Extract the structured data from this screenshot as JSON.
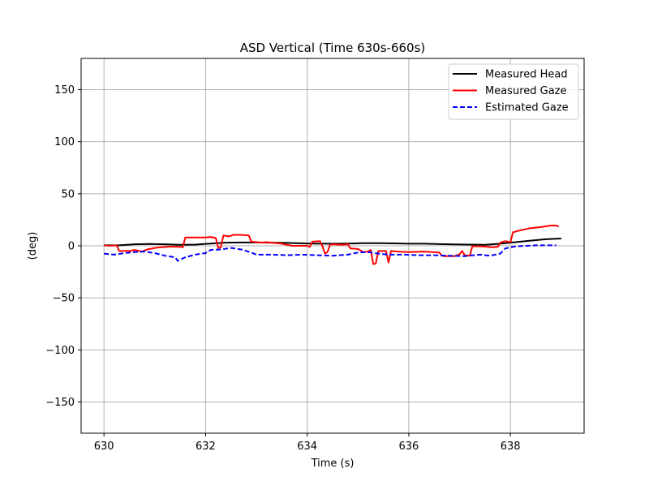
{
  "chart_data": {
    "type": "line",
    "title": "ASD Vertical (Time 630s-660s)",
    "xlabel": "Time (s)",
    "ylabel": "(deg)",
    "xlim": [
      629.55,
      639.45
    ],
    "ylim": [
      -180,
      180
    ],
    "xticks": [
      630,
      632,
      634,
      636,
      638
    ],
    "xtick_labels": [
      "630",
      "632",
      "634",
      "636",
      "638"
    ],
    "yticks": [
      150,
      100,
      50,
      0,
      -50,
      -100,
      -150
    ],
    "ytick_labels": [
      "150",
      "100",
      "50",
      "0",
      "−50",
      "−100",
      "−150"
    ],
    "grid": true,
    "legend_position": "top-right",
    "series": [
      {
        "name": "Measured Head",
        "color": "#000000",
        "dash": "solid",
        "points": [
          [
            630.0,
            0.5
          ],
          [
            630.3,
            0.5
          ],
          [
            630.6,
            1.5
          ],
          [
            630.9,
            1.8
          ],
          [
            631.2,
            1.5
          ],
          [
            631.5,
            1.0
          ],
          [
            631.8,
            1.2
          ],
          [
            632.1,
            2.2
          ],
          [
            632.4,
            3.0
          ],
          [
            632.7,
            3.2
          ],
          [
            633.0,
            3.2
          ],
          [
            633.3,
            3.0
          ],
          [
            633.6,
            2.8
          ],
          [
            633.9,
            2.3
          ],
          [
            634.2,
            2.0
          ],
          [
            634.5,
            2.0
          ],
          [
            634.8,
            2.2
          ],
          [
            635.1,
            2.6
          ],
          [
            635.4,
            2.5
          ],
          [
            635.7,
            2.3
          ],
          [
            636.0,
            2.0
          ],
          [
            636.3,
            2.0
          ],
          [
            636.6,
            1.6
          ],
          [
            636.9,
            1.4
          ],
          [
            637.2,
            1.2
          ],
          [
            637.5,
            1.0
          ],
          [
            637.8,
            2.0
          ],
          [
            638.1,
            3.5
          ],
          [
            638.4,
            5.0
          ],
          [
            638.7,
            6.3
          ],
          [
            639.0,
            7.0
          ]
        ]
      },
      {
        "name": "Measured Gaze",
        "color": "#ff0000",
        "dash": "solid",
        "points": [
          [
            630.0,
            0.5
          ],
          [
            630.1,
            0.0
          ],
          [
            630.25,
            0.5
          ],
          [
            630.3,
            -5.0
          ],
          [
            630.5,
            -5.0
          ],
          [
            630.6,
            -4.0
          ],
          [
            630.75,
            -5.5
          ],
          [
            630.85,
            -3.5
          ],
          [
            631.0,
            -2.0
          ],
          [
            631.1,
            -1.5
          ],
          [
            631.3,
            -0.8
          ],
          [
            631.5,
            -1.0
          ],
          [
            631.55,
            -1.5
          ],
          [
            631.6,
            8.0
          ],
          [
            632.0,
            8.0
          ],
          [
            632.1,
            8.5
          ],
          [
            632.2,
            7.5
          ],
          [
            632.25,
            -2.0
          ],
          [
            632.3,
            -1.5
          ],
          [
            632.35,
            10.0
          ],
          [
            632.45,
            9.0
          ],
          [
            632.55,
            10.5
          ],
          [
            632.7,
            10.5
          ],
          [
            632.85,
            10.0
          ],
          [
            632.9,
            4.0
          ],
          [
            633.1,
            3.0
          ],
          [
            633.2,
            3.5
          ],
          [
            633.5,
            2.0
          ],
          [
            633.7,
            0.0
          ],
          [
            634.0,
            0.0
          ],
          [
            634.05,
            -1.0
          ],
          [
            634.1,
            4.0
          ],
          [
            634.25,
            4.5
          ],
          [
            634.3,
            -0.5
          ],
          [
            634.35,
            -7.5
          ],
          [
            634.4,
            -6.0
          ],
          [
            634.45,
            1.0
          ],
          [
            634.5,
            1.5
          ],
          [
            634.7,
            1.0
          ],
          [
            634.8,
            1.5
          ],
          [
            634.85,
            -2.5
          ],
          [
            635.0,
            -3.0
          ],
          [
            635.1,
            -6.0
          ],
          [
            635.2,
            -5.5
          ],
          [
            635.25,
            -4.0
          ],
          [
            635.3,
            -17.5
          ],
          [
            635.35,
            -17.0
          ],
          [
            635.4,
            -5.0
          ],
          [
            635.55,
            -5.0
          ],
          [
            635.6,
            -16.0
          ],
          [
            635.65,
            -5.0
          ],
          [
            635.8,
            -5.5
          ],
          [
            636.0,
            -6.0
          ],
          [
            636.3,
            -5.5
          ],
          [
            636.6,
            -6.5
          ],
          [
            636.65,
            -9.5
          ],
          [
            636.7,
            -10.0
          ],
          [
            636.9,
            -10.0
          ],
          [
            637.0,
            -8.0
          ],
          [
            637.05,
            -5.0
          ],
          [
            637.1,
            -9.0
          ],
          [
            637.2,
            -9.5
          ],
          [
            637.25,
            -0.5
          ],
          [
            637.4,
            -0.5
          ],
          [
            637.55,
            -1.0
          ],
          [
            637.65,
            -1.5
          ],
          [
            637.75,
            -1.0
          ],
          [
            637.8,
            3.0
          ],
          [
            637.9,
            4.5
          ],
          [
            638.0,
            3.5
          ],
          [
            638.05,
            13.0
          ],
          [
            638.2,
            15.0
          ],
          [
            638.4,
            17.0
          ],
          [
            638.6,
            18.0
          ],
          [
            638.8,
            19.5
          ],
          [
            638.9,
            19.5
          ],
          [
            638.95,
            18.5
          ]
        ]
      },
      {
        "name": "Estimated Gaze",
        "color": "#0000ff",
        "dash": "dashed",
        "points": [
          [
            630.0,
            -7.5
          ],
          [
            630.2,
            -8.5
          ],
          [
            630.4,
            -7.0
          ],
          [
            630.6,
            -6.0
          ],
          [
            630.8,
            -5.5
          ],
          [
            631.0,
            -7.0
          ],
          [
            631.2,
            -9.5
          ],
          [
            631.4,
            -11.0
          ],
          [
            631.45,
            -14.5
          ],
          [
            631.6,
            -11.0
          ],
          [
            631.8,
            -8.5
          ],
          [
            632.0,
            -7.0
          ],
          [
            632.1,
            -4.0
          ],
          [
            632.3,
            -3.5
          ],
          [
            632.5,
            -2.0
          ],
          [
            632.7,
            -3.5
          ],
          [
            632.9,
            -6.5
          ],
          [
            633.0,
            -8.5
          ],
          [
            633.3,
            -8.5
          ],
          [
            633.6,
            -9.0
          ],
          [
            633.9,
            -8.5
          ],
          [
            634.2,
            -9.0
          ],
          [
            634.5,
            -9.5
          ],
          [
            634.8,
            -8.5
          ],
          [
            635.0,
            -6.5
          ],
          [
            635.2,
            -6.0
          ],
          [
            635.4,
            -7.5
          ],
          [
            635.6,
            -8.5
          ],
          [
            635.9,
            -8.5
          ],
          [
            636.2,
            -9.0
          ],
          [
            636.5,
            -9.0
          ],
          [
            636.8,
            -9.5
          ],
          [
            637.1,
            -10.0
          ],
          [
            637.4,
            -8.5
          ],
          [
            637.6,
            -9.5
          ],
          [
            637.8,
            -7.5
          ],
          [
            637.9,
            -2.5
          ],
          [
            638.1,
            -0.5
          ],
          [
            638.3,
            0.0
          ],
          [
            638.5,
            0.5
          ],
          [
            638.7,
            0.5
          ],
          [
            638.9,
            0.5
          ]
        ]
      }
    ]
  }
}
